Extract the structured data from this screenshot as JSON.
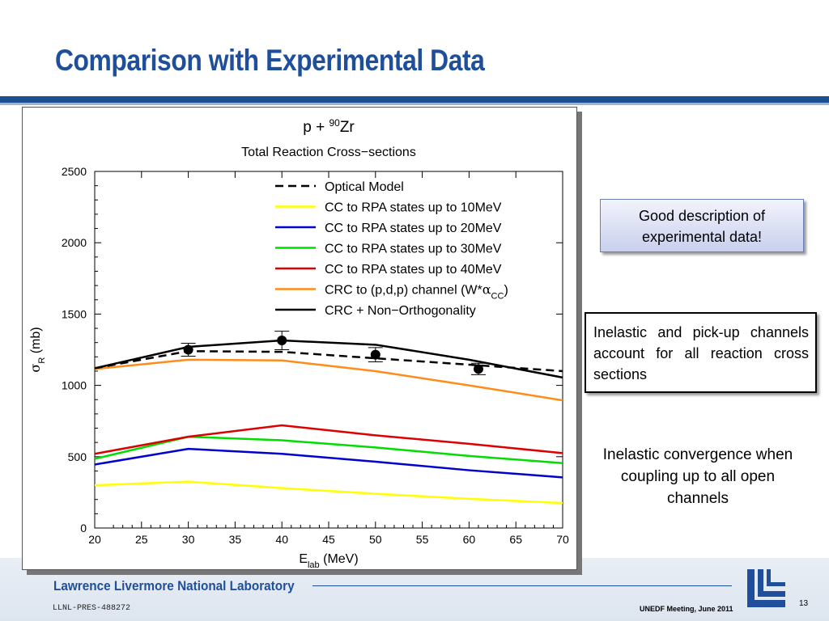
{
  "slide": {
    "title": "Comparison with Experimental Data",
    "callout_good": "Good description of experimental data!",
    "callout_inelastic": "Inelastic and pick-up channels account for all reaction cross sections",
    "note_convergence": "Inelastic convergence when coupling up to all open channels",
    "footer_lab": "Lawrence Livermore National Laboratory",
    "footer_pres": "LLNL-PRES-488272",
    "footer_meeting": "UNEDF Meeting, June 2011",
    "page_number": "13",
    "logo_icon": "llnl-logo-icon"
  },
  "chart_data": {
    "type": "line",
    "title_prefix": "p + ",
    "title_superscript": "90",
    "title_element": "Zr",
    "subtitle": "Total Reaction Cross−sections",
    "xlabel_main": "E",
    "xlabel_sub": "lab",
    "xlabel_unit": " (MeV)",
    "ylabel_symbol": "σ",
    "ylabel_sub": "R",
    "ylabel_unit": " (mb)",
    "xlim": [
      20,
      70
    ],
    "ylim": [
      0,
      2500
    ],
    "xticks": [
      20,
      25,
      30,
      35,
      40,
      45,
      50,
      55,
      60,
      65,
      70
    ],
    "yticks": [
      0,
      500,
      1000,
      1500,
      2000,
      2500
    ],
    "legend_position": "top-right",
    "grid": false,
    "series": [
      {
        "name": "Optical Model",
        "color": "#000000",
        "dashed": true,
        "x": [
          20,
          30,
          40,
          50,
          60,
          70
        ],
        "y": [
          1120,
          1240,
          1235,
          1190,
          1145,
          1100
        ]
      },
      {
        "name": "CC to RPA states up to 10MeV",
        "color": "#ffff00",
        "dashed": false,
        "x": [
          20,
          30,
          40,
          50,
          60,
          70
        ],
        "y": [
          300,
          325,
          280,
          240,
          205,
          175
        ]
      },
      {
        "name": "CC to RPA states up to 20MeV",
        "color": "#0000cc",
        "dashed": false,
        "x": [
          20,
          30,
          40,
          50,
          60,
          70
        ],
        "y": [
          445,
          555,
          520,
          465,
          405,
          355
        ]
      },
      {
        "name": "CC to RPA states up to 30MeV",
        "color": "#00dd00",
        "dashed": false,
        "x": [
          20,
          30,
          40,
          50,
          60,
          70
        ],
        "y": [
          485,
          640,
          615,
          565,
          505,
          455
        ]
      },
      {
        "name": "CC to RPA states up to 40MeV",
        "color": "#dd0000",
        "dashed": false,
        "x": [
          20,
          30,
          40,
          50,
          60,
          70
        ],
        "y": [
          520,
          640,
          720,
          650,
          590,
          525
        ]
      },
      {
        "name_prefix": "CRC to (p,d,p) channel (W*",
        "name_symbol": "α",
        "name_sub": "CC",
        "name_suffix": ")",
        "color": "#ff8c1a",
        "dashed": false,
        "x": [
          20,
          30,
          40,
          50,
          60,
          70
        ],
        "y": [
          1115,
          1180,
          1175,
          1100,
          1000,
          895
        ]
      },
      {
        "name": "CRC + Non−Orthogonality",
        "color": "#000000",
        "dashed": false,
        "x": [
          20,
          30,
          40,
          50,
          60,
          70
        ],
        "y": [
          1120,
          1270,
          1315,
          1285,
          1180,
          1055
        ]
      }
    ],
    "experimental": [
      {
        "x": 30,
        "y": 1250,
        "err": 45
      },
      {
        "x": 40,
        "y": 1315,
        "err": 65
      },
      {
        "x": 50,
        "y": 1215,
        "err": 50
      },
      {
        "x": 61,
        "y": 1115,
        "err": 40
      }
    ]
  }
}
